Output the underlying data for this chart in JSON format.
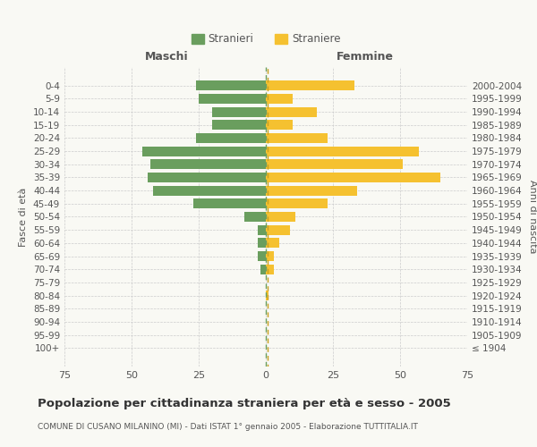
{
  "age_groups": [
    "100+",
    "95-99",
    "90-94",
    "85-89",
    "80-84",
    "75-79",
    "70-74",
    "65-69",
    "60-64",
    "55-59",
    "50-54",
    "45-49",
    "40-44",
    "35-39",
    "30-34",
    "25-29",
    "20-24",
    "15-19",
    "10-14",
    "5-9",
    "0-4"
  ],
  "birth_years": [
    "≤ 1904",
    "1905-1909",
    "1910-1914",
    "1915-1919",
    "1920-1924",
    "1925-1929",
    "1930-1934",
    "1935-1939",
    "1940-1944",
    "1945-1949",
    "1950-1954",
    "1955-1959",
    "1960-1964",
    "1965-1969",
    "1970-1974",
    "1975-1979",
    "1980-1984",
    "1985-1989",
    "1990-1994",
    "1995-1999",
    "2000-2004"
  ],
  "males": [
    0,
    0,
    0,
    0,
    0,
    0,
    2,
    3,
    3,
    3,
    8,
    27,
    42,
    44,
    43,
    46,
    26,
    20,
    20,
    25,
    26
  ],
  "females": [
    0,
    0,
    0,
    0,
    1,
    0,
    3,
    3,
    5,
    9,
    11,
    23,
    34,
    65,
    51,
    57,
    23,
    10,
    19,
    10,
    33
  ],
  "male_color": "#6a9e5e",
  "female_color": "#f5c130",
  "bg_color": "#f9f9f4",
  "grid_color": "#cccccc",
  "dashed_line_color_green": "#6a9e5e",
  "dashed_line_color_yellow": "#c8a020",
  "title": "Popolazione per cittadinanza straniera per età e sesso - 2005",
  "subtitle": "COMUNE DI CUSANO MILANINO (MI) - Dati ISTAT 1° gennaio 2005 - Elaborazione TUTTITALIA.IT",
  "xlabel_left": "Maschi",
  "xlabel_right": "Femmine",
  "ylabel_left": "Fasce di età",
  "ylabel_right": "Anni di nascita",
  "legend_stranieri": "Stranieri",
  "legend_straniere": "Straniere",
  "xlim": 75
}
